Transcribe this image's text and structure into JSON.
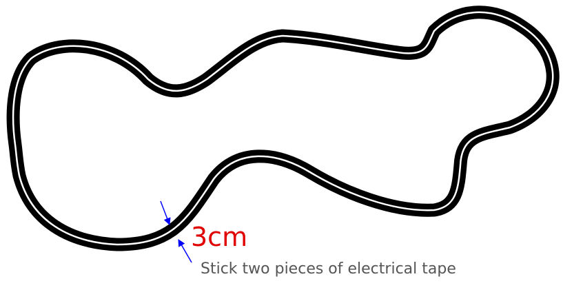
{
  "diagram": {
    "track_width_label": "3cm",
    "instruction": "Stick two pieces of electrical tape"
  },
  "colors": {
    "tape": "#000000",
    "gap": "#ffffff",
    "arrow": "#0000ff",
    "measure_text": "#e00000",
    "note_text": "#555555",
    "background": "#ffffff"
  }
}
